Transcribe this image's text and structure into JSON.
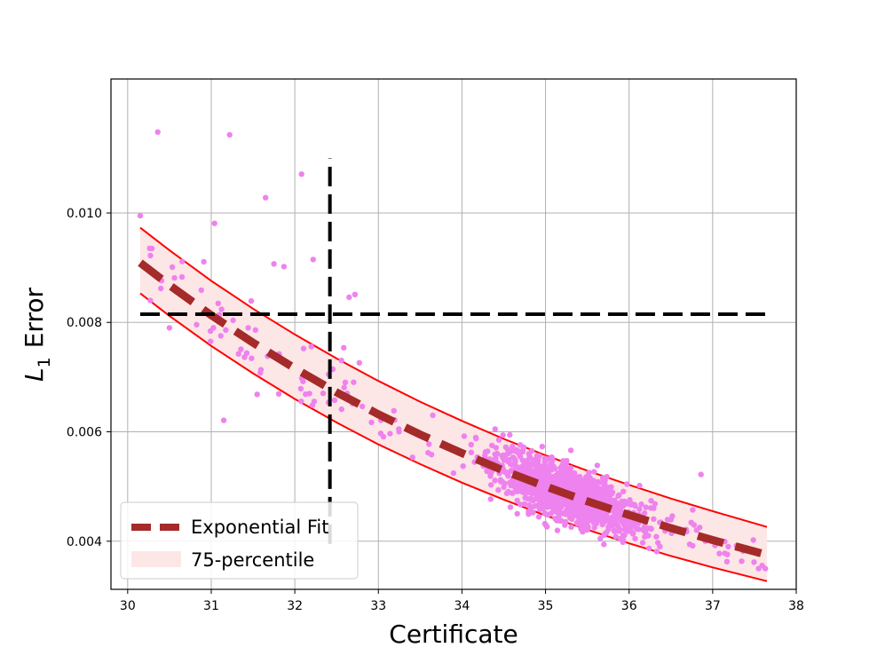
{
  "chart_data": {
    "type": "scatter",
    "xlabel": "Certificate",
    "ylabel": "Error",
    "ylabel_symbol": "L",
    "ylabel_subscript": "1",
    "xlim": [
      29.8,
      38.0
    ],
    "ylim": [
      0.00312,
      0.01245
    ],
    "x_ticks": [
      30,
      31,
      32,
      33,
      34,
      35,
      36,
      37,
      38
    ],
    "x_tick_labels": [
      "30",
      "31",
      "32",
      "33",
      "34",
      "35",
      "36",
      "37",
      "38"
    ],
    "y_ticks": [
      0.004,
      0.006,
      0.008,
      0.01
    ],
    "y_tick_labels": [
      "0.004",
      "0.006",
      "0.008",
      "0.010"
    ],
    "grid": true,
    "legend_placement": "lower-left",
    "fit": {
      "name": "Exponential Fit",
      "color": "#a52a2a",
      "x": [
        30.15,
        30.5,
        31.0,
        31.5,
        32.0,
        32.5,
        33.0,
        33.5,
        34.0,
        34.5,
        35.0,
        35.5,
        36.0,
        36.5,
        37.0,
        37.65
      ],
      "y": [
        0.00909,
        0.00868,
        0.00813,
        0.00763,
        0.00716,
        0.00672,
        0.00632,
        0.00595,
        0.00561,
        0.00529,
        0.005,
        0.00473,
        0.00448,
        0.00424,
        0.00402,
        0.00375
      ]
    },
    "band": {
      "name": "75-percentile",
      "fill_color": "#fde6e6",
      "edge_color": "#ff0000",
      "x": [
        30.15,
        30.5,
        31.0,
        31.5,
        32.0,
        32.5,
        33.0,
        33.5,
        34.0,
        34.5,
        35.0,
        35.5,
        36.0,
        36.5,
        37.0,
        37.65
      ],
      "upper": [
        0.00973,
        0.00932,
        0.00876,
        0.00825,
        0.00778,
        0.00734,
        0.00693,
        0.00655,
        0.0062,
        0.00587,
        0.00557,
        0.00529,
        0.00503,
        0.00478,
        0.00455,
        0.00426
      ],
      "lower": [
        0.00853,
        0.00812,
        0.00757,
        0.00707,
        0.0066,
        0.00617,
        0.00577,
        0.00541,
        0.00507,
        0.00476,
        0.00447,
        0.00421,
        0.00396,
        0.00373,
        0.00352,
        0.00327
      ]
    },
    "threshold_lines": [
      {
        "orientation": "horizontal",
        "y": 0.00815,
        "x_from": 30.15,
        "x_to": 37.65,
        "color": "#000000"
      },
      {
        "orientation": "vertical",
        "x": 32.42,
        "y_from": 0.00395,
        "y_to": 0.011,
        "color": "#000000"
      }
    ],
    "scatter": {
      "color": "#ee82ee",
      "count": 1300,
      "notable_points": [
        {
          "x": 30.15,
          "y": 0.00995
        },
        {
          "x": 30.36,
          "y": 0.01148
        },
        {
          "x": 31.22,
          "y": 0.01143
        },
        {
          "x": 32.08,
          "y": 0.01071
        },
        {
          "x": 31.65,
          "y": 0.01028
        },
        {
          "x": 31.04,
          "y": 0.00981
        },
        {
          "x": 32.22,
          "y": 0.00915
        },
        {
          "x": 31.87,
          "y": 0.00902
        },
        {
          "x": 31.75,
          "y": 0.00907
        },
        {
          "x": 30.65,
          "y": 0.00883
        },
        {
          "x": 31.15,
          "y": 0.00621
        },
        {
          "x": 30.5,
          "y": 0.0079
        },
        {
          "x": 32.72,
          "y": 0.00851
        },
        {
          "x": 32.65,
          "y": 0.00846
        },
        {
          "x": 36.86,
          "y": 0.00522
        },
        {
          "x": 37.55,
          "y": 0.0035
        },
        {
          "x": 37.63,
          "y": 0.0035
        }
      ]
    },
    "legend": [
      {
        "label": "Exponential Fit",
        "kind": "dashed-line",
        "color": "#a52a2a"
      },
      {
        "label": "75-percentile",
        "kind": "patch",
        "color": "#fde6e6"
      }
    ]
  }
}
